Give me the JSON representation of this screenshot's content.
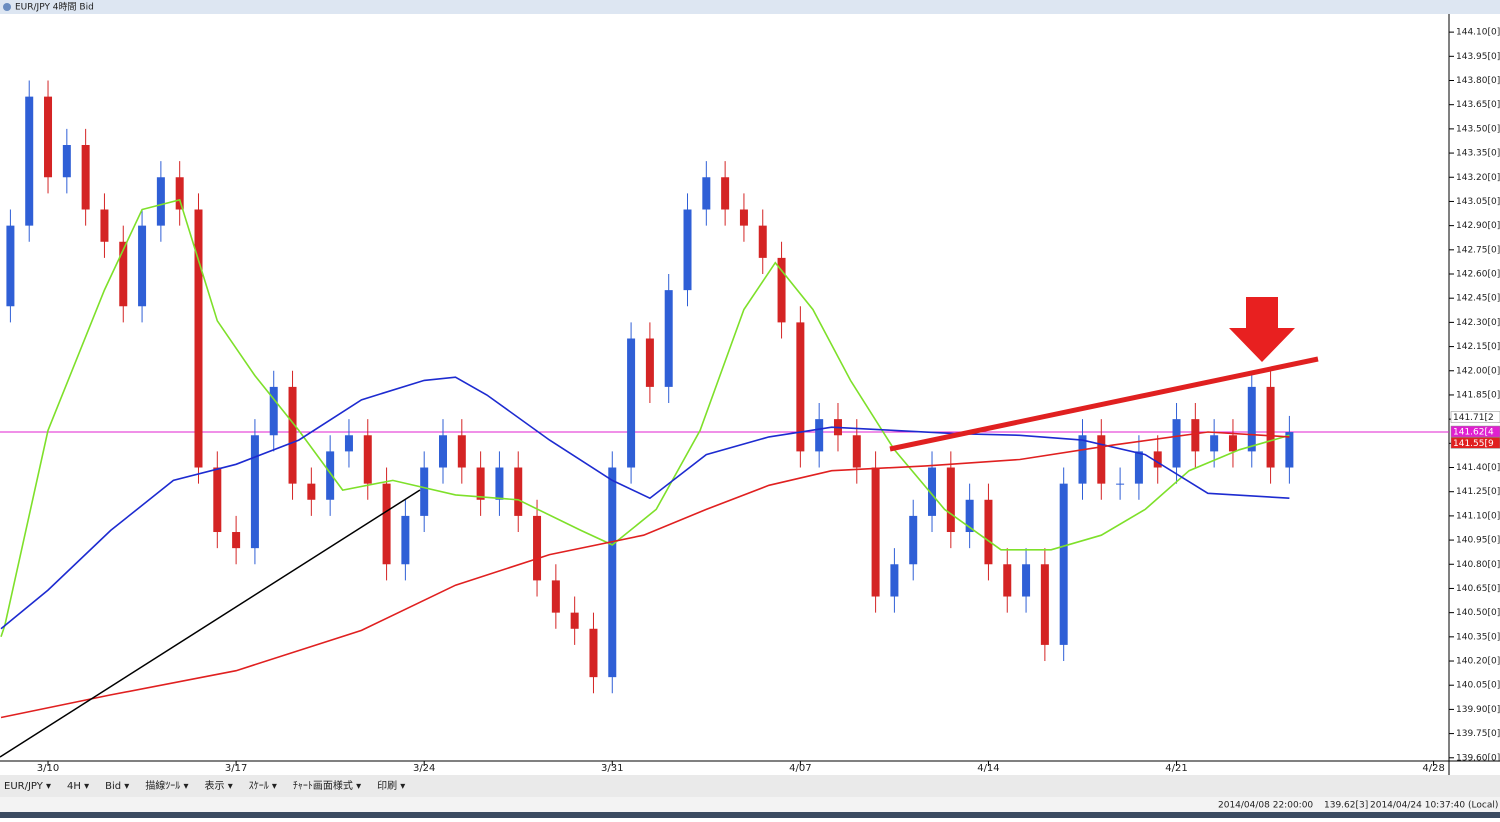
{
  "window": {
    "title": "EUR/JPY 4時間 Bid"
  },
  "toolbar": [
    "EUR/JPY ▾",
    "4H ▾",
    "Bid ▾",
    "描線ﾂｰﾙ ▾",
    "表示 ▾",
    "ｽｹｰﾙ ▾",
    "ﾁｬｰﾄ画面様式 ▾",
    "印刷 ▾"
  ],
  "status": [
    "2014/04/08 22:00:00",
    "139.62[3]",
    "2014/04/24 10:37:40 (Local)"
  ],
  "chart_data": {
    "type": "candlestick",
    "up_color": "#2f5fd6",
    "down_color": "#d42424",
    "x": [
      -6,
      -3,
      0,
      3,
      6,
      9,
      12,
      15,
      18,
      21,
      24,
      27,
      30,
      33,
      36,
      39,
      42,
      45,
      48,
      51,
      54,
      57,
      60,
      63,
      66,
      69,
      72,
      75,
      78,
      81,
      84,
      87,
      90,
      93,
      96,
      99,
      102,
      105,
      108,
      111,
      114,
      117,
      120,
      123,
      126,
      129,
      132,
      135,
      138,
      141,
      144,
      147,
      150,
      153,
      156,
      159,
      162,
      165,
      168,
      171,
      174,
      177,
      180,
      183,
      186,
      189,
      192,
      195,
      198
    ],
    "open": [
      142.4,
      142.9,
      143.7,
      143.2,
      143.4,
      143.0,
      142.8,
      142.4,
      142.9,
      143.2,
      143.0,
      141.4,
      141.0,
      140.9,
      141.6,
      141.9,
      141.3,
      141.2,
      141.5,
      141.6,
      141.3,
      140.8,
      141.1,
      141.4,
      141.6,
      141.4,
      141.2,
      141.4,
      141.1,
      140.7,
      140.5,
      140.4,
      140.1,
      141.4,
      142.2,
      141.9,
      142.5,
      143.0,
      143.2,
      143.0,
      142.9,
      142.7,
      142.3,
      141.5,
      141.7,
      141.6,
      141.4,
      140.6,
      140.8,
      141.1,
      141.4,
      141.0,
      141.2,
      140.8,
      140.6,
      140.8,
      140.3,
      141.3,
      141.6,
      141.3,
      141.3,
      141.5,
      141.4,
      141.7,
      141.5,
      141.6,
      141.5,
      141.9,
      141.4
    ],
    "high": [
      143.0,
      143.8,
      143.8,
      143.5,
      143.5,
      143.1,
      142.9,
      143.0,
      143.3,
      143.3,
      143.1,
      141.5,
      141.1,
      141.7,
      142.0,
      142.0,
      141.4,
      141.6,
      141.7,
      141.7,
      141.4,
      141.2,
      141.5,
      141.7,
      141.7,
      141.5,
      141.5,
      141.5,
      141.2,
      140.8,
      140.6,
      140.5,
      141.5,
      142.3,
      142.3,
      142.6,
      143.1,
      143.3,
      143.3,
      143.1,
      143.0,
      142.8,
      142.4,
      141.8,
      141.8,
      141.7,
      141.5,
      140.9,
      141.2,
      141.5,
      141.5,
      141.3,
      141.3,
      140.9,
      140.9,
      140.9,
      141.4,
      141.7,
      141.7,
      141.4,
      141.6,
      141.6,
      141.8,
      141.8,
      141.7,
      141.7,
      142.0,
      142.0,
      141.72
    ],
    "low": [
      142.3,
      142.8,
      143.1,
      143.1,
      142.9,
      142.7,
      142.3,
      142.3,
      142.8,
      142.9,
      141.3,
      140.9,
      140.8,
      140.8,
      141.5,
      141.2,
      141.1,
      141.1,
      141.4,
      141.2,
      140.7,
      140.7,
      141.0,
      141.3,
      141.3,
      141.1,
      141.1,
      141.0,
      140.6,
      140.4,
      140.3,
      140.0,
      140.0,
      141.3,
      141.8,
      141.8,
      142.4,
      142.9,
      142.9,
      142.8,
      142.6,
      142.2,
      141.4,
      141.4,
      141.5,
      141.3,
      140.5,
      140.5,
      140.7,
      141.0,
      140.9,
      140.9,
      140.7,
      140.5,
      140.5,
      140.2,
      140.2,
      141.2,
      141.2,
      141.2,
      141.2,
      141.3,
      141.3,
      141.4,
      141.4,
      141.4,
      141.4,
      141.3,
      141.3
    ],
    "close": [
      142.9,
      143.7,
      143.2,
      143.4,
      143.0,
      142.8,
      142.4,
      142.9,
      143.2,
      143.0,
      141.4,
      141.0,
      140.9,
      141.6,
      141.9,
      141.3,
      141.2,
      141.5,
      141.6,
      141.3,
      140.8,
      141.1,
      141.4,
      141.6,
      141.4,
      141.2,
      141.4,
      141.1,
      140.7,
      140.5,
      140.4,
      140.1,
      141.4,
      142.2,
      141.9,
      142.5,
      143.0,
      143.2,
      143.0,
      142.9,
      142.7,
      142.3,
      141.5,
      141.7,
      141.6,
      141.4,
      140.6,
      140.8,
      141.1,
      141.4,
      141.0,
      141.2,
      140.8,
      140.6,
      140.8,
      140.3,
      141.3,
      141.6,
      141.3,
      141.3,
      141.5,
      141.4,
      141.7,
      141.5,
      141.6,
      141.5,
      141.9,
      141.4,
      141.62
    ],
    "series": [
      {
        "color": "#7ee02a",
        "x": [
          -7.5,
          -6.9,
          0,
          9,
          15,
          21,
          27,
          33,
          40,
          47,
          55,
          65,
          75,
          85,
          90,
          97,
          104,
          111,
          116,
          122,
          128,
          135,
          143,
          152,
          160,
          168,
          175,
          182,
          190,
          198
        ],
        "values": [
          140.35,
          140.42,
          141.63,
          142.5,
          143.0,
          143.06,
          142.31,
          141.97,
          141.63,
          141.26,
          141.32,
          141.23,
          141.2,
          141.01,
          140.92,
          141.14,
          141.63,
          142.38,
          142.67,
          142.38,
          141.94,
          141.51,
          141.14,
          140.89,
          140.89,
          140.98,
          141.14,
          141.38,
          141.51,
          141.6
        ]
      },
      {
        "color": "#1d2bd0",
        "x": [
          -7.5,
          0,
          10,
          20,
          30,
          40,
          50,
          60,
          65,
          70,
          80,
          90,
          96,
          105,
          115,
          125,
          135,
          145,
          155,
          165,
          175,
          185,
          198
        ],
        "values": [
          140.4,
          140.64,
          141.01,
          141.32,
          141.42,
          141.57,
          141.82,
          141.94,
          141.96,
          141.85,
          141.57,
          141.32,
          141.21,
          141.48,
          141.59,
          141.65,
          141.63,
          141.61,
          141.6,
          141.57,
          141.48,
          141.24,
          141.21
        ]
      },
      {
        "color": "#e02020",
        "x": [
          -7.5,
          10,
          30,
          50,
          65,
          80,
          95,
          105,
          115,
          125,
          140,
          155,
          170,
          185,
          198
        ],
        "values": [
          139.85,
          139.99,
          140.14,
          140.39,
          140.67,
          140.86,
          140.98,
          141.14,
          141.29,
          141.38,
          141.41,
          141.45,
          141.54,
          141.62,
          141.59
        ]
      }
    ],
    "price_tags": [
      {
        "value": 141.71,
        "label": "141.71[2",
        "color": "#ffffff"
      },
      {
        "value": 141.62,
        "label": "141.62[4",
        "color": "#e020d0"
      },
      {
        "value": 141.55,
        "label": "141.55[9",
        "color": "#e02020"
      }
    ],
    "xlim": [
      -7.66,
      223.3
    ],
    "ylim": [
      139.58,
      144.2
    ],
    "xticks": [
      {
        "value": 0,
        "label": "3/10"
      },
      {
        "value": 30,
        "label": "3/17"
      },
      {
        "value": 60,
        "label": "3/24"
      },
      {
        "value": 90,
        "label": "3/31"
      },
      {
        "value": 120,
        "label": "4/07"
      },
      {
        "value": 150,
        "label": "4/14"
      },
      {
        "value": 180,
        "label": "4/21"
      },
      {
        "value": 221,
        "label": "4/28"
      }
    ],
    "yticks": [
      {
        "value": 139.6,
        "label": "139.60[0]"
      },
      {
        "value": 139.75,
        "label": "139.75[0]"
      },
      {
        "value": 139.9,
        "label": "139.90[0]"
      },
      {
        "value": 140.05,
        "label": "140.05[0]"
      },
      {
        "value": 140.2,
        "label": "140.20[0]"
      },
      {
        "value": 140.35,
        "label": "140.35[0]"
      },
      {
        "value": 140.5,
        "label": "140.50[0]"
      },
      {
        "value": 140.65,
        "label": "140.65[0]"
      },
      {
        "value": 140.8,
        "label": "140.80[0]"
      },
      {
        "value": 140.95,
        "label": "140.95[0]"
      },
      {
        "value": 141.1,
        "label": "141.10[0]"
      },
      {
        "value": 141.25,
        "label": "141.25[0]"
      },
      {
        "value": 141.4,
        "label": "141.40[0]"
      },
      {
        "value": 141.55,
        "label": "141.55[0]"
      },
      {
        "value": 141.7,
        "label": "141.70[0]"
      },
      {
        "value": 141.85,
        "label": "141.85[0]"
      },
      {
        "value": 142,
        "label": "142.00[0]"
      },
      {
        "value": 142.15,
        "label": "142.15[0]"
      },
      {
        "value": 142.3,
        "label": "142.30[0]"
      },
      {
        "value": 142.45,
        "label": "142.45[0]"
      },
      {
        "value": 142.6,
        "label": "142.60[0]"
      },
      {
        "value": 142.75,
        "label": "142.75[0]"
      },
      {
        "value": 142.9,
        "label": "142.90[0]"
      },
      {
        "value": 143.05,
        "label": "143.05[0]"
      },
      {
        "value": 143.2,
        "label": "143.20[0]"
      },
      {
        "value": 143.35,
        "label": "143.35[0]"
      },
      {
        "value": 143.5,
        "label": "143.50[0]"
      },
      {
        "value": 143.65,
        "label": "143.65[0]"
      },
      {
        "value": 143.8,
        "label": "143.80[0]"
      },
      {
        "value": 143.95,
        "label": "143.95[0]"
      },
      {
        "value": 144.1,
        "label": "144.10[0]"
      }
    ]
  }
}
